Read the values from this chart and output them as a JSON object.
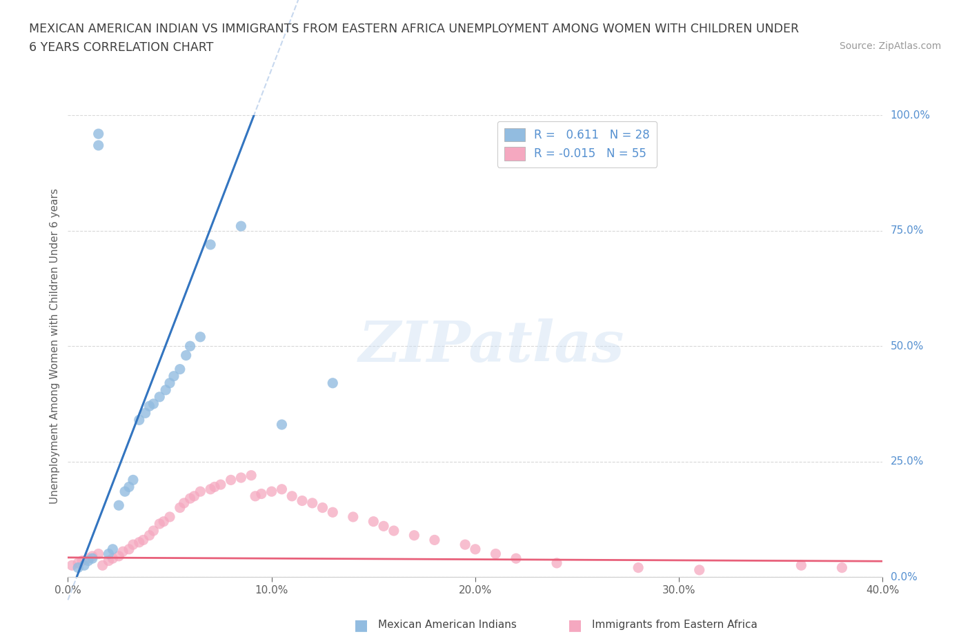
{
  "title_line1": "MEXICAN AMERICAN INDIAN VS IMMIGRANTS FROM EASTERN AFRICA UNEMPLOYMENT AMONG WOMEN WITH CHILDREN UNDER",
  "title_line2": "6 YEARS CORRELATION CHART",
  "source": "Source: ZipAtlas.com",
  "ylabel": "Unemployment Among Women with Children Under 6 years",
  "legend_label1": "Mexican American Indians",
  "legend_label2": "Immigrants from Eastern Africa",
  "legend_R1": "R =   0.611   N = 28",
  "legend_R2": "R = -0.015   N = 55",
  "blue_scatter_x": [
    0.005,
    0.008,
    0.01,
    0.012,
    0.015,
    0.015,
    0.02,
    0.022,
    0.025,
    0.028,
    0.03,
    0.032,
    0.035,
    0.038,
    0.04,
    0.042,
    0.045,
    0.048,
    0.05,
    0.052,
    0.055,
    0.058,
    0.06,
    0.065,
    0.07,
    0.085,
    0.105,
    0.13
  ],
  "blue_scatter_y": [
    0.02,
    0.025,
    0.035,
    0.04,
    0.935,
    0.96,
    0.05,
    0.06,
    0.155,
    0.185,
    0.195,
    0.21,
    0.34,
    0.355,
    0.37,
    0.375,
    0.39,
    0.405,
    0.42,
    0.435,
    0.45,
    0.48,
    0.5,
    0.52,
    0.72,
    0.76,
    0.33,
    0.42
  ],
  "pink_scatter_x": [
    0.002,
    0.005,
    0.007,
    0.01,
    0.012,
    0.015,
    0.017,
    0.02,
    0.022,
    0.025,
    0.027,
    0.03,
    0.032,
    0.035,
    0.037,
    0.04,
    0.042,
    0.045,
    0.047,
    0.05,
    0.055,
    0.057,
    0.06,
    0.062,
    0.065,
    0.07,
    0.072,
    0.075,
    0.08,
    0.085,
    0.09,
    0.092,
    0.095,
    0.1,
    0.105,
    0.11,
    0.115,
    0.12,
    0.125,
    0.13,
    0.14,
    0.15,
    0.155,
    0.16,
    0.17,
    0.18,
    0.195,
    0.2,
    0.21,
    0.22,
    0.24,
    0.28,
    0.31,
    0.36,
    0.38
  ],
  "pink_scatter_y": [
    0.025,
    0.03,
    0.035,
    0.04,
    0.045,
    0.05,
    0.025,
    0.035,
    0.04,
    0.045,
    0.055,
    0.06,
    0.07,
    0.075,
    0.08,
    0.09,
    0.1,
    0.115,
    0.12,
    0.13,
    0.15,
    0.16,
    0.17,
    0.175,
    0.185,
    0.19,
    0.195,
    0.2,
    0.21,
    0.215,
    0.22,
    0.175,
    0.18,
    0.185,
    0.19,
    0.175,
    0.165,
    0.16,
    0.15,
    0.14,
    0.13,
    0.12,
    0.11,
    0.1,
    0.09,
    0.08,
    0.07,
    0.06,
    0.05,
    0.04,
    0.03,
    0.02,
    0.015,
    0.025,
    0.02
  ],
  "xlim": [
    0.0,
    0.4
  ],
  "ylim": [
    0.0,
    1.0
  ],
  "xticks": [
    0.0,
    0.1,
    0.2,
    0.3,
    0.4
  ],
  "yticks": [
    0.0,
    0.25,
    0.5,
    0.75,
    1.0
  ],
  "watermark_text": "ZIPatlas",
  "background_color": "#ffffff",
  "scatter_size": 120,
  "blue_color": "#92bce0",
  "pink_color": "#f5a8c0",
  "blue_line_color": "#3375c0",
  "pink_line_color": "#e8607a",
  "dashed_line_color": "#b0c8e8",
  "grid_color": "#d8d8d8",
  "right_axis_color": "#5590d0",
  "title_color": "#404040",
  "label_color": "#606060"
}
